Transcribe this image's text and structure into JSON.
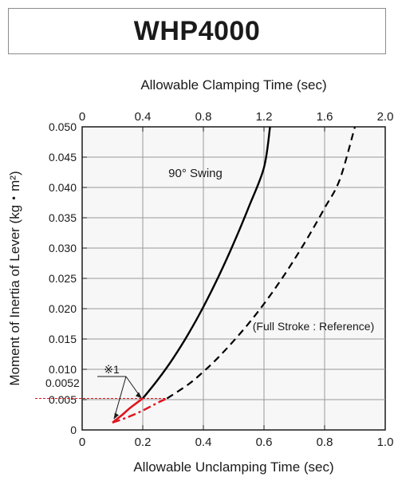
{
  "chart_data": {
    "type": "line",
    "title": "WHP4000",
    "xlabel": "Allowable Unclamping Time (sec)",
    "x2label": "Allowable Clamping Time (sec)",
    "ylabel": "Moment of Inertia of Lever (kg・m²)",
    "xlim": [
      0,
      1.0
    ],
    "x2lim": [
      0,
      2.0
    ],
    "ylim": [
      0,
      0.05
    ],
    "x_ticks": [
      "0",
      "0.2",
      "0.4",
      "0.6",
      "0.8",
      "1.0"
    ],
    "x2_ticks": [
      "0",
      "0.4",
      "0.8",
      "1.2",
      "1.6",
      "2.0"
    ],
    "y_ticks": [
      "0",
      "0.005",
      "0.010",
      "0.015",
      "0.020",
      "0.025",
      "0.030",
      "0.035",
      "0.040",
      "0.045",
      "0.050"
    ],
    "grid": true,
    "annotations": {
      "swing_label": "90° Swing",
      "reference_label": "(Full Stroke : Reference)",
      "note_mark": "※1",
      "marker_value": "0.0052",
      "marker_y": 0.0052,
      "marker_x": 0.2
    },
    "series": [
      {
        "style": "solid-black",
        "x": [
          0.2,
          0.25,
          0.3,
          0.35,
          0.4,
          0.45,
          0.5,
          0.55,
          0.6,
          0.62
        ],
        "y": [
          0.0052,
          0.0083,
          0.0118,
          0.0158,
          0.0203,
          0.0253,
          0.0308,
          0.0368,
          0.0433,
          0.05
        ]
      },
      {
        "style": "dashed-black",
        "x": [
          0.28,
          0.35,
          0.4,
          0.45,
          0.5,
          0.55,
          0.6,
          0.65,
          0.7,
          0.75,
          0.8,
          0.85,
          0.9
        ],
        "y": [
          0.0052,
          0.0075,
          0.0096,
          0.012,
          0.0147,
          0.0176,
          0.0208,
          0.0243,
          0.0281,
          0.0322,
          0.0366,
          0.0413,
          0.05
        ]
      },
      {
        "style": "solid-red",
        "x": [
          0.1,
          0.13,
          0.16,
          0.2
        ],
        "y": [
          0.0012,
          0.0024,
          0.0037,
          0.0052
        ]
      },
      {
        "style": "dashdot-red",
        "x": [
          0.1,
          0.15,
          0.2,
          0.25,
          0.28
        ],
        "y": [
          0.0012,
          0.0021,
          0.0032,
          0.0045,
          0.0052
        ]
      }
    ]
  }
}
